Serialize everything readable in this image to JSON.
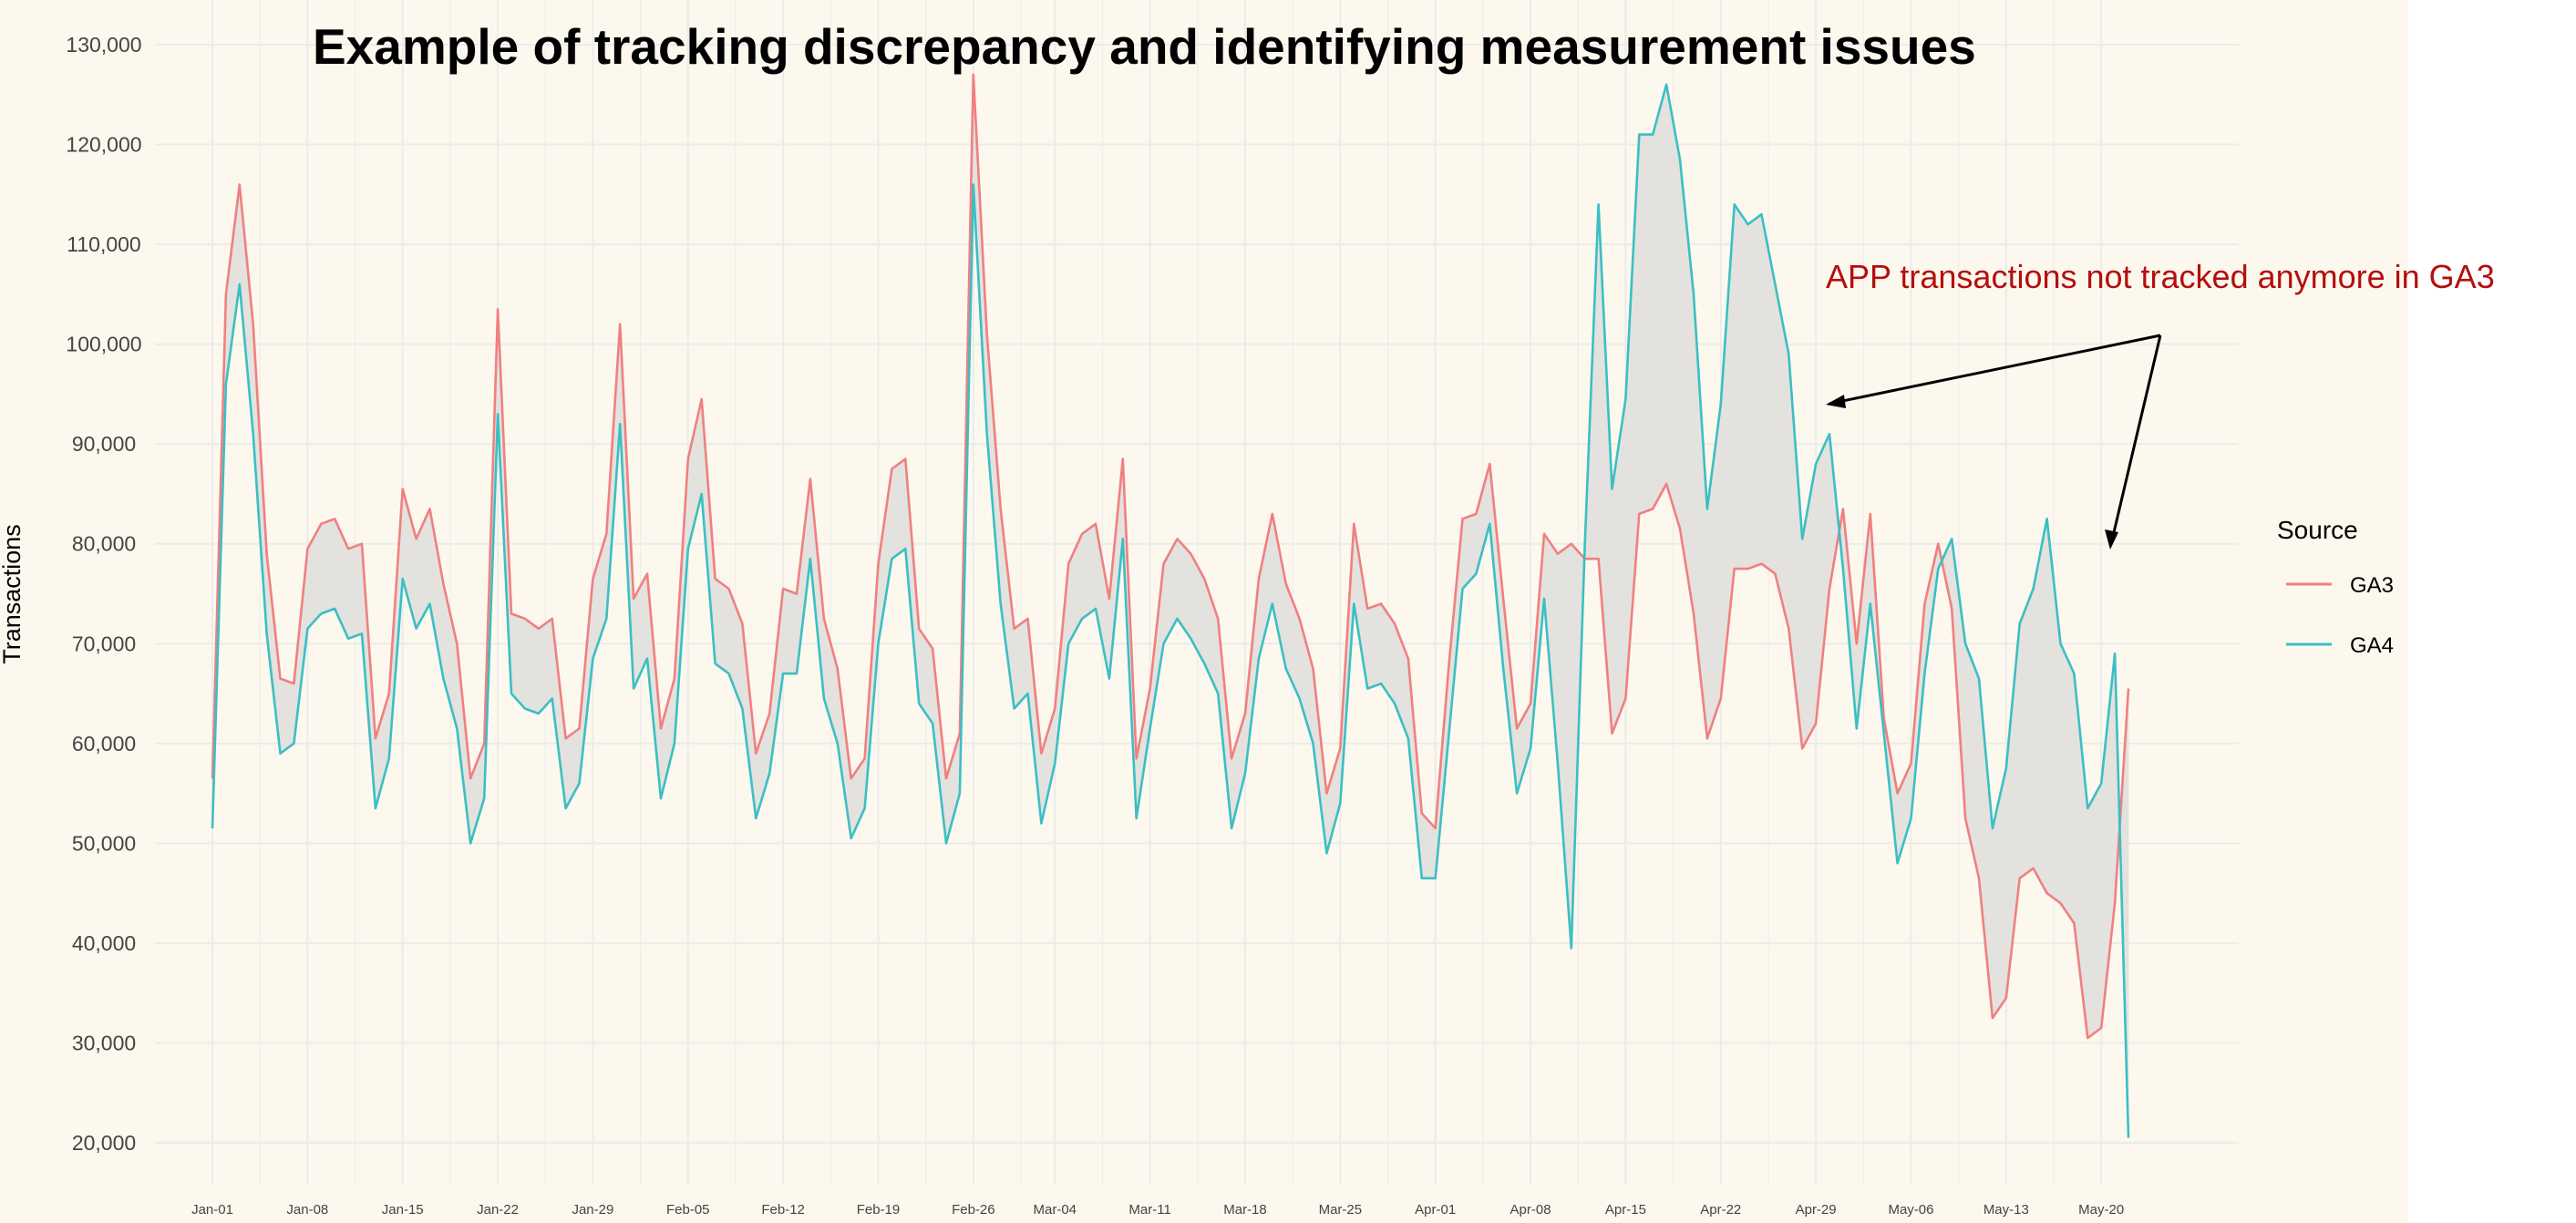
{
  "colors": {
    "panel_bg": "#fdf8ee",
    "grid": "#ebebeb",
    "band": "#e3e2de",
    "ga3": "#f08080",
    "ga4": "#3bbfc4",
    "annotation": "#b30f0f",
    "text": "#000000",
    "tick_text": "#444444"
  },
  "annotation": {
    "text": "APP transactions not tracked anymore in GA3"
  },
  "chart_data": {
    "type": "line",
    "title": "Example of tracking discrepancy and identifying measurement issues",
    "xlabel": "",
    "ylabel": "Transactions",
    "x_start": "2023-01-01",
    "x_end": "2023-05-22",
    "ylim": [
      15000,
      131000
    ],
    "y_ticks": [
      20000,
      30000,
      40000,
      50000,
      60000,
      70000,
      80000,
      90000,
      100000,
      110000,
      120000,
      130000
    ],
    "y_tick_labels": [
      "20,000",
      "30,000",
      "40,000",
      "50,000",
      "60,000",
      "70,000",
      "80,000",
      "90,000",
      "100,000",
      "110,000",
      "120,000",
      "130,000"
    ],
    "x_ticks": [
      "2023-01-01",
      "2023-01-08",
      "2023-01-15",
      "2023-01-22",
      "2023-01-29",
      "2023-02-05",
      "2023-02-12",
      "2023-02-19",
      "2023-02-26",
      "2023-03-04",
      "2023-03-11",
      "2023-03-18",
      "2023-03-25",
      "2023-04-01",
      "2023-04-08",
      "2023-04-15",
      "2023-04-22",
      "2023-04-29",
      "2023-05-06",
      "2023-05-13",
      "2023-05-20"
    ],
    "x_tick_labels": [
      "Jan-01",
      "Jan-08",
      "Jan-15",
      "Jan-22",
      "Jan-29",
      "Feb-05",
      "Feb-12",
      "Feb-19",
      "Feb-26",
      "Mar-04",
      "Mar-11",
      "Mar-18",
      "Mar-25",
      "Apr-01",
      "Apr-08",
      "Apr-15",
      "Apr-22",
      "Apr-29",
      "May-06",
      "May-13",
      "May-20"
    ],
    "grid": true,
    "legend": {
      "title": "Source",
      "position": "right"
    },
    "series": [
      {
        "name": "GA3",
        "values": [
          56500,
          105000,
          116000,
          102000,
          79000,
          66500,
          66000,
          79500,
          82000,
          82500,
          79500,
          80000,
          60500,
          65000,
          85500,
          80500,
          83500,
          76000,
          70000,
          56500,
          60000,
          103500,
          73000,
          72500,
          71500,
          72500,
          60500,
          61500,
          76500,
          81000,
          102000,
          74500,
          77000,
          61500,
          66500,
          88500,
          94500,
          76500,
          75500,
          72000,
          59000,
          63000,
          75500,
          75000,
          86500,
          72500,
          67500,
          56500,
          58500,
          78000,
          87500,
          88500,
          71500,
          69500,
          56500,
          61000,
          127000,
          101000,
          83500,
          71500,
          72500,
          59000,
          63500,
          78000,
          81000,
          82000,
          74500,
          88500,
          58500,
          65500,
          78000,
          80500,
          79000,
          76500,
          72500,
          58500,
          63000,
          76500,
          83000,
          76000,
          72500,
          67500,
          55000,
          59500,
          82000,
          73500,
          74000,
          72000,
          68500,
          53000,
          51500,
          68000,
          82500,
          83000,
          88000,
          74500,
          61500,
          64000,
          81000,
          79000,
          80000,
          78500,
          78500,
          61000,
          64500,
          83000,
          83500,
          86000,
          81500,
          73000,
          60500,
          64500,
          77500,
          77500,
          78000,
          77000,
          71500,
          59500,
          62000,
          75500,
          83500,
          70000,
          83000,
          62500,
          55000,
          58000,
          74000,
          80000,
          73500,
          52500,
          46500,
          32500,
          34500,
          46500,
          47500,
          45000,
          44000,
          42000,
          30500,
          31500,
          44000,
          65500
        ]
      },
      {
        "name": "GA4",
        "values": [
          51500,
          96000,
          106000,
          91000,
          71000,
          59000,
          60000,
          71500,
          73000,
          73500,
          70500,
          71000,
          53500,
          58500,
          76500,
          71500,
          74000,
          66500,
          61500,
          50000,
          54500,
          93000,
          65000,
          63500,
          63000,
          64500,
          53500,
          56000,
          68500,
          72500,
          92000,
          65500,
          68500,
          54500,
          60000,
          79500,
          85000,
          68000,
          67000,
          63500,
          52500,
          57000,
          67000,
          67000,
          78500,
          64500,
          60000,
          50500,
          53500,
          70000,
          78500,
          79500,
          64000,
          62000,
          50000,
          55000,
          116000,
          91000,
          74000,
          63500,
          65000,
          52000,
          58000,
          70000,
          72500,
          73500,
          66500,
          80500,
          52500,
          61500,
          70000,
          72500,
          70500,
          68000,
          65000,
          51500,
          57000,
          68500,
          74000,
          67500,
          64500,
          60000,
          49000,
          54000,
          74000,
          65500,
          66000,
          64000,
          60500,
          46500,
          46500,
          61000,
          75500,
          77000,
          82000,
          67500,
          55000,
          59500,
          74500,
          58000,
          39500,
          80000,
          114000,
          85500,
          94500,
          121000,
          121000,
          126000,
          118500,
          105000,
          83500,
          94000,
          114000,
          112000,
          113000,
          106000,
          99000,
          80500,
          88000,
          91000,
          77500,
          61500,
          74000,
          61000,
          48000,
          52500,
          67000,
          77500,
          80500,
          70000,
          66500,
          51500,
          57500,
          72000,
          75500,
          82500,
          70000,
          67000,
          53500,
          56000,
          69000,
          20500
        ]
      }
    ]
  }
}
